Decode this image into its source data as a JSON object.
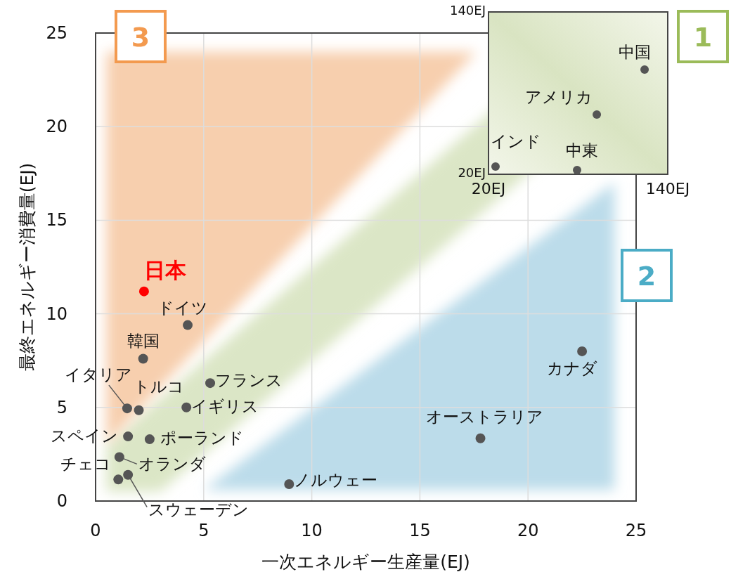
{
  "chart_data": [
    {
      "type": "scatter",
      "xlabel": "一次エネルギー生産量(EJ)",
      "ylabel": "最終エネルギー消費量(EJ)",
      "xlim": [
        0,
        25
      ],
      "ylim": [
        0,
        25
      ],
      "xticks": [
        0,
        5,
        10,
        15,
        20,
        25
      ],
      "yticks": [
        0,
        5,
        10,
        15,
        20,
        25
      ],
      "grid": true,
      "marker": "circle",
      "annotations": [
        "3",
        "1",
        "2"
      ],
      "series": [
        {
          "name": "日本",
          "color": "#ff0000",
          "x": [
            2.24
          ],
          "values": [
            11.2
          ]
        },
        {
          "name": "ドイツ",
          "color": "#555555",
          "x": [
            4.26
          ],
          "values": [
            9.4
          ]
        },
        {
          "name": "韓国",
          "color": "#555555",
          "x": [
            2.2
          ],
          "values": [
            7.6
          ]
        },
        {
          "name": "フランス",
          "color": "#555555",
          "x": [
            5.3
          ],
          "values": [
            6.3
          ]
        },
        {
          "name": "イタリア",
          "color": "#555555",
          "x": [
            1.46
          ],
          "values": [
            4.95
          ]
        },
        {
          "name": "トルコ",
          "color": "#555555",
          "x": [
            2.0
          ],
          "values": [
            4.85
          ]
        },
        {
          "name": "イギリス",
          "color": "#555555",
          "x": [
            4.2
          ],
          "values": [
            5.0
          ]
        },
        {
          "name": "スペイン",
          "color": "#555555",
          "x": [
            1.5
          ],
          "values": [
            3.45
          ]
        },
        {
          "name": "ポーランド",
          "color": "#555555",
          "x": [
            2.5
          ],
          "values": [
            3.3
          ]
        },
        {
          "name": "オランダ",
          "color": "#555555",
          "x": [
            1.1
          ],
          "values": [
            2.35
          ]
        },
        {
          "name": "チェコ",
          "color": "#555555",
          "x": [
            1.05
          ],
          "values": [
            1.15
          ]
        },
        {
          "name": "スウェーデン",
          "color": "#555555",
          "x": [
            1.5
          ],
          "values": [
            1.4
          ]
        },
        {
          "name": "ノルウェー",
          "color": "#555555",
          "x": [
            8.95
          ],
          "values": [
            0.9
          ]
        },
        {
          "name": "オーストラリア",
          "color": "#555555",
          "x": [
            17.8
          ],
          "values": [
            3.35
          ]
        },
        {
          "name": "カナダ",
          "color": "#555555",
          "x": [
            22.5
          ],
          "values": [
            8.0
          ]
        }
      ]
    },
    {
      "type": "scatter",
      "xlim": [
        20,
        140
      ],
      "ylim": [
        20,
        140
      ],
      "xticks": [
        {
          "value": 20,
          "label": "20EJ"
        },
        {
          "value": 140,
          "label": "140EJ"
        }
      ],
      "yticks": [
        {
          "value": 20,
          "label": "20EJ"
        },
        {
          "value": 140,
          "label": "140EJ"
        }
      ],
      "marker": "circle",
      "series": [
        {
          "name": "中国",
          "color": "#555555",
          "x": [
            124.5
          ],
          "values": [
            97.4
          ]
        },
        {
          "name": "アメリカ",
          "color": "#555555",
          "x": [
            92.5
          ],
          "values": [
            64.2
          ]
        },
        {
          "name": "インド",
          "color": "#555555",
          "x": [
            24.7
          ],
          "values": [
            25.7
          ]
        },
        {
          "name": "中東",
          "color": "#555555",
          "x": [
            79.3
          ],
          "values": [
            23.1
          ]
        }
      ]
    }
  ]
}
